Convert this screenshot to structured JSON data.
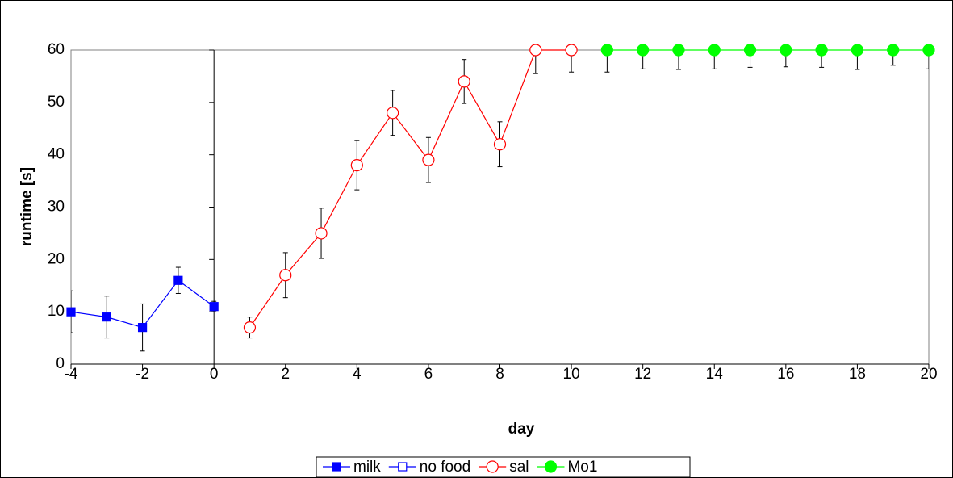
{
  "chart_data": {
    "type": "line",
    "xlabel": "day",
    "ylabel": "runtime [s]",
    "xlim": [
      -4,
      20
    ],
    "xticks": [
      -4,
      -2,
      0,
      2,
      4,
      6,
      8,
      10,
      12,
      14,
      16,
      18,
      20
    ],
    "ylim": [
      0,
      60
    ],
    "yticks": [
      0,
      10,
      20,
      30,
      40,
      50,
      60
    ],
    "legend": "bottom",
    "series": [
      {
        "name": "milk",
        "color": "#0000ff",
        "marker": "square",
        "filled": true,
        "x": [
          -4,
          -3,
          -2,
          -1,
          0
        ],
        "values": [
          10,
          9,
          7,
          16,
          11
        ],
        "errors": [
          4,
          4,
          4.5,
          2.5,
          1
        ]
      },
      {
        "name": "no food",
        "color": "#0000ff",
        "marker": "square",
        "filled": false,
        "x": [],
        "values": [],
        "errors": []
      },
      {
        "name": "sal",
        "color": "#ff0000",
        "marker": "circle",
        "filled": false,
        "x": [
          1,
          2,
          3,
          4,
          5,
          6,
          7,
          8,
          9,
          10
        ],
        "values": [
          7,
          17,
          25,
          38,
          48,
          39,
          54,
          42,
          60,
          60
        ],
        "errors": [
          2,
          4.3,
          4.8,
          4.7,
          4.3,
          4.3,
          4.2,
          4.3,
          4.5,
          4.2
        ]
      },
      {
        "name": "Mo1",
        "color": "#00ff00",
        "marker": "circle",
        "filled": true,
        "x": [
          11,
          12,
          13,
          14,
          15,
          16,
          17,
          18,
          19,
          20
        ],
        "values": [
          60,
          60,
          60,
          60,
          60,
          60,
          60,
          60,
          60,
          60
        ],
        "errors": [
          4.2,
          3.6,
          3.7,
          3.6,
          3.3,
          3.2,
          3.3,
          3.7,
          2.9,
          3.6
        ]
      }
    ]
  }
}
